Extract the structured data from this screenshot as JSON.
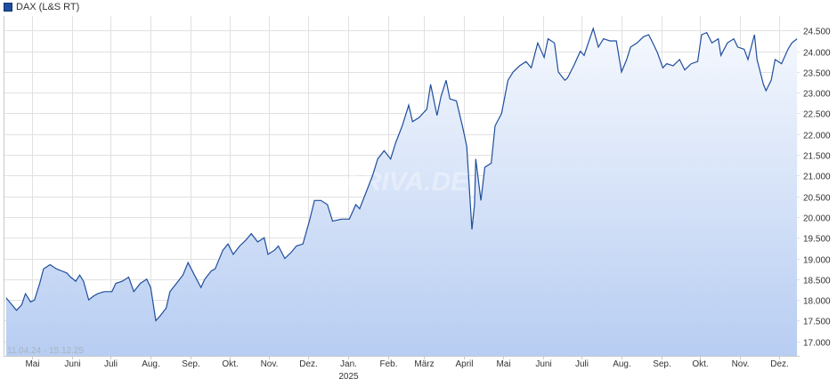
{
  "legend": {
    "label": "DAX (L&S RT)",
    "color": "#1f4e9c"
  },
  "range_label": "11.04.24 - 15.12.25",
  "watermark": "ARIVA.DE",
  "chart_data": {
    "type": "area",
    "title": "",
    "xlabel": "",
    "ylabel": "",
    "ylim": [
      16650,
      24850
    ],
    "y_ticks": [
      17000,
      17500,
      18000,
      18500,
      19000,
      19500,
      20000,
      20500,
      21000,
      21500,
      22000,
      22500,
      23000,
      23500,
      24000,
      24500
    ],
    "y_tick_labels": [
      "17.000",
      "17.500",
      "18.000",
      "18.500",
      "19.000",
      "19.500",
      "20.000",
      "20.500",
      "21.000",
      "21.500",
      "22.000",
      "22.500",
      "23.000",
      "23.500",
      "24.000",
      "24.500"
    ],
    "y_axis_position": "right",
    "x_tick_dates": [
      "2024-05-01",
      "2024-06-01",
      "2024-07-01",
      "2024-08-01",
      "2024-09-01",
      "2024-10-01",
      "2024-11-01",
      "2024-12-01",
      "2025-01-01",
      "2025-02-01",
      "2025-03-01",
      "2025-04-01",
      "2025-05-01",
      "2025-06-01",
      "2025-07-01",
      "2025-08-01",
      "2025-09-01",
      "2025-10-01",
      "2025-11-01",
      "2025-12-01"
    ],
    "x_tick_labels": [
      "Mai",
      "Juni",
      "Juli",
      "Aug.",
      "Sep.",
      "Okt.",
      "Nov.",
      "Dez.",
      "Jan.",
      "Feb.",
      "März",
      "April",
      "Mai",
      "Juni",
      "Juli",
      "Aug.",
      "Sep.",
      "Okt.",
      "Nov.",
      "Dez."
    ],
    "x_year_label": {
      "date": "2025-01-01",
      "label": "2025"
    },
    "grid": true,
    "legend_position": "top-left",
    "colors": {
      "line": "#1f4e9c",
      "fill_top": "#f5f8fe",
      "fill_bottom": "#b7cdf2",
      "grid": "#e1e1e1"
    },
    "series": [
      {
        "name": "DAX (L&S RT)",
        "points": [
          [
            "2024-04-11",
            18050
          ],
          [
            "2024-04-15",
            17900
          ],
          [
            "2024-04-19",
            17750
          ],
          [
            "2024-04-23",
            17880
          ],
          [
            "2024-04-26",
            18150
          ],
          [
            "2024-04-30",
            17950
          ],
          [
            "2024-05-03",
            18000
          ],
          [
            "2024-05-07",
            18400
          ],
          [
            "2024-05-10",
            18750
          ],
          [
            "2024-05-15",
            18850
          ],
          [
            "2024-05-20",
            18750
          ],
          [
            "2024-05-24",
            18700
          ],
          [
            "2024-05-28",
            18650
          ],
          [
            "2024-05-31",
            18550
          ],
          [
            "2024-06-04",
            18450
          ],
          [
            "2024-06-07",
            18600
          ],
          [
            "2024-06-10",
            18450
          ],
          [
            "2024-06-14",
            18000
          ],
          [
            "2024-06-18",
            18100
          ],
          [
            "2024-06-21",
            18150
          ],
          [
            "2024-06-26",
            18200
          ],
          [
            "2024-07-02",
            18200
          ],
          [
            "2024-07-05",
            18400
          ],
          [
            "2024-07-10",
            18450
          ],
          [
            "2024-07-15",
            18550
          ],
          [
            "2024-07-19",
            18200
          ],
          [
            "2024-07-24",
            18400
          ],
          [
            "2024-07-29",
            18500
          ],
          [
            "2024-08-01",
            18300
          ],
          [
            "2024-08-05",
            17500
          ],
          [
            "2024-08-08",
            17600
          ],
          [
            "2024-08-13",
            17800
          ],
          [
            "2024-08-16",
            18200
          ],
          [
            "2024-08-21",
            18400
          ],
          [
            "2024-08-26",
            18600
          ],
          [
            "2024-08-30",
            18900
          ],
          [
            "2024-09-04",
            18600
          ],
          [
            "2024-09-09",
            18300
          ],
          [
            "2024-09-12",
            18500
          ],
          [
            "2024-09-17",
            18700
          ],
          [
            "2024-09-20",
            18750
          ],
          [
            "2024-09-26",
            19200
          ],
          [
            "2024-09-30",
            19350
          ],
          [
            "2024-10-04",
            19100
          ],
          [
            "2024-10-09",
            19300
          ],
          [
            "2024-10-14",
            19450
          ],
          [
            "2024-10-18",
            19600
          ],
          [
            "2024-10-23",
            19400
          ],
          [
            "2024-10-28",
            19500
          ],
          [
            "2024-10-31",
            19100
          ],
          [
            "2024-11-05",
            19200
          ],
          [
            "2024-11-08",
            19300
          ],
          [
            "2024-11-13",
            19000
          ],
          [
            "2024-11-18",
            19150
          ],
          [
            "2024-11-22",
            19300
          ],
          [
            "2024-11-27",
            19350
          ],
          [
            "2024-12-02",
            19900
          ],
          [
            "2024-12-06",
            20400
          ],
          [
            "2024-12-11",
            20400
          ],
          [
            "2024-12-16",
            20300
          ],
          [
            "2024-12-20",
            19900
          ],
          [
            "2024-12-27",
            19950
          ],
          [
            "2025-01-02",
            19950
          ],
          [
            "2025-01-07",
            20300
          ],
          [
            "2025-01-10",
            20200
          ],
          [
            "2025-01-15",
            20600
          ],
          [
            "2025-01-20",
            21000
          ],
          [
            "2025-01-24",
            21400
          ],
          [
            "2025-01-29",
            21600
          ],
          [
            "2025-02-03",
            21400
          ],
          [
            "2025-02-07",
            21800
          ],
          [
            "2025-02-12",
            22200
          ],
          [
            "2025-02-17",
            22700
          ],
          [
            "2025-02-20",
            22300
          ],
          [
            "2025-02-25",
            22400
          ],
          [
            "2025-03-03",
            22600
          ],
          [
            "2025-03-06",
            23200
          ],
          [
            "2025-03-11",
            22450
          ],
          [
            "2025-03-14",
            22900
          ],
          [
            "2025-03-18",
            23300
          ],
          [
            "2025-03-21",
            22850
          ],
          [
            "2025-03-26",
            22800
          ],
          [
            "2025-03-31",
            22150
          ],
          [
            "2025-04-03",
            21700
          ],
          [
            "2025-04-07",
            19700
          ],
          [
            "2025-04-09",
            20300
          ],
          [
            "2025-04-10",
            21400
          ],
          [
            "2025-04-14",
            20400
          ],
          [
            "2025-04-17",
            21200
          ],
          [
            "2025-04-22",
            21300
          ],
          [
            "2025-04-25",
            22200
          ],
          [
            "2025-04-30",
            22500
          ],
          [
            "2025-05-05",
            23300
          ],
          [
            "2025-05-09",
            23500
          ],
          [
            "2025-05-14",
            23650
          ],
          [
            "2025-05-19",
            23750
          ],
          [
            "2025-05-23",
            23600
          ],
          [
            "2025-05-28",
            24200
          ],
          [
            "2025-06-02",
            23850
          ],
          [
            "2025-06-05",
            24300
          ],
          [
            "2025-06-10",
            24200
          ],
          [
            "2025-06-13",
            23500
          ],
          [
            "2025-06-18",
            23300
          ],
          [
            "2025-06-20",
            23350
          ],
          [
            "2025-06-25",
            23650
          ],
          [
            "2025-06-30",
            24000
          ],
          [
            "2025-07-03",
            23900
          ],
          [
            "2025-07-10",
            24550
          ],
          [
            "2025-07-14",
            24100
          ],
          [
            "2025-07-18",
            24300
          ],
          [
            "2025-07-23",
            24250
          ],
          [
            "2025-07-28",
            24250
          ],
          [
            "2025-08-01",
            23500
          ],
          [
            "2025-08-05",
            23800
          ],
          [
            "2025-08-08",
            24100
          ],
          [
            "2025-08-13",
            24200
          ],
          [
            "2025-08-18",
            24350
          ],
          [
            "2025-08-22",
            24400
          ],
          [
            "2025-08-26",
            24150
          ],
          [
            "2025-08-29",
            23950
          ],
          [
            "2025-09-02",
            23600
          ],
          [
            "2025-09-05",
            23700
          ],
          [
            "2025-09-10",
            23650
          ],
          [
            "2025-09-15",
            23800
          ],
          [
            "2025-09-19",
            23550
          ],
          [
            "2025-09-24",
            23700
          ],
          [
            "2025-09-29",
            23750
          ],
          [
            "2025-10-02",
            24400
          ],
          [
            "2025-10-06",
            24450
          ],
          [
            "2025-10-10",
            24200
          ],
          [
            "2025-10-15",
            24300
          ],
          [
            "2025-10-17",
            23900
          ],
          [
            "2025-10-22",
            24200
          ],
          [
            "2025-10-27",
            24300
          ],
          [
            "2025-10-30",
            24100
          ],
          [
            "2025-11-04",
            24050
          ],
          [
            "2025-11-07",
            23800
          ],
          [
            "2025-11-12",
            24400
          ],
          [
            "2025-11-14",
            23800
          ],
          [
            "2025-11-19",
            23200
          ],
          [
            "2025-11-21",
            23050
          ],
          [
            "2025-11-25",
            23300
          ],
          [
            "2025-11-28",
            23800
          ],
          [
            "2025-12-03",
            23700
          ],
          [
            "2025-12-08",
            24050
          ],
          [
            "2025-12-11",
            24200
          ],
          [
            "2025-12-15",
            24300
          ]
        ]
      }
    ]
  }
}
